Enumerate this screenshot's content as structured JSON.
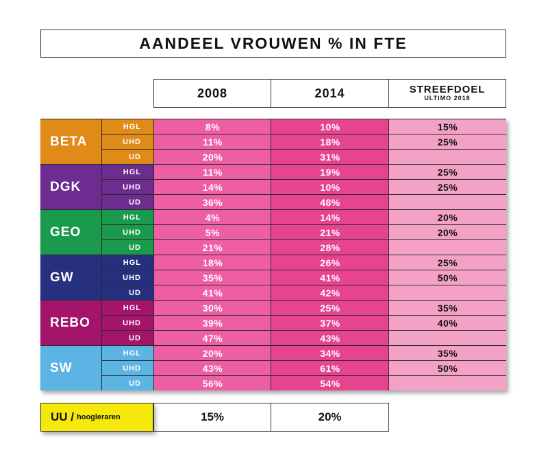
{
  "title": "AANDEEL VROUWEN % IN FTE",
  "columns": {
    "col1": "2008",
    "col2": "2014",
    "target_main": "STREEFDOEL",
    "target_sub": "ULTIMO 2018"
  },
  "colors": {
    "col_2008": "#ee5ea4",
    "col_2014": "#e6448e",
    "col_target": "#f3a2c6",
    "BETA": "#e08a18",
    "DGK": "#6d2d90",
    "GEO": "#1a9a4c",
    "GW": "#27307f",
    "REBO": "#a3146a",
    "SW": "#5bb4e3",
    "uu_bg": "#f5e80a"
  },
  "chart_data": {
    "type": "table",
    "title": "AANDEEL VROUWEN % IN FTE",
    "columns": [
      "2008",
      "2014",
      "STREEFDOEL ULTIMO 2018"
    ],
    "groups": [
      {
        "name": "BETA",
        "rows": [
          {
            "level": "HGL",
            "y2008": "8%",
            "y2014": "10%",
            "target": "15%"
          },
          {
            "level": "UHD",
            "y2008": "11%",
            "y2014": "18%",
            "target": "25%"
          },
          {
            "level": "UD",
            "y2008": "20%",
            "y2014": "31%",
            "target": ""
          }
        ]
      },
      {
        "name": "DGK",
        "rows": [
          {
            "level": "HGL",
            "y2008": "11%",
            "y2014": "19%",
            "target": "25%"
          },
          {
            "level": "UHD",
            "y2008": "14%",
            "y2014": "10%",
            "target": "25%"
          },
          {
            "level": "UD",
            "y2008": "36%",
            "y2014": "48%",
            "target": ""
          }
        ]
      },
      {
        "name": "GEO",
        "rows": [
          {
            "level": "HGL",
            "y2008": "4%",
            "y2014": "14%",
            "target": "20%"
          },
          {
            "level": "UHD",
            "y2008": "5%",
            "y2014": "21%",
            "target": "20%"
          },
          {
            "level": "UD",
            "y2008": "21%",
            "y2014": "28%",
            "target": ""
          }
        ]
      },
      {
        "name": "GW",
        "rows": [
          {
            "level": "HGL",
            "y2008": "18%",
            "y2014": "26%",
            "target": "25%"
          },
          {
            "level": "UHD",
            "y2008": "35%",
            "y2014": "41%",
            "target": "50%"
          },
          {
            "level": "UD",
            "y2008": "41%",
            "y2014": "42%",
            "target": ""
          }
        ]
      },
      {
        "name": "REBO",
        "rows": [
          {
            "level": "HGL",
            "y2008": "30%",
            "y2014": "25%",
            "target": "35%"
          },
          {
            "level": "UHD",
            "y2008": "39%",
            "y2014": "37%",
            "target": "40%"
          },
          {
            "level": "UD",
            "y2008": "47%",
            "y2014": "43%",
            "target": ""
          }
        ]
      },
      {
        "name": "SW",
        "rows": [
          {
            "level": "HGL",
            "y2008": "20%",
            "y2014": "34%",
            "target": "35%"
          },
          {
            "level": "UHD",
            "y2008": "43%",
            "y2014": "61%",
            "target": "50%"
          },
          {
            "level": "UD",
            "y2008": "56%",
            "y2014": "54%",
            "target": ""
          }
        ]
      }
    ],
    "summary": {
      "label": "UU /",
      "sublabel": "hoogleraren",
      "y2008": "15%",
      "y2014": "20%"
    }
  }
}
